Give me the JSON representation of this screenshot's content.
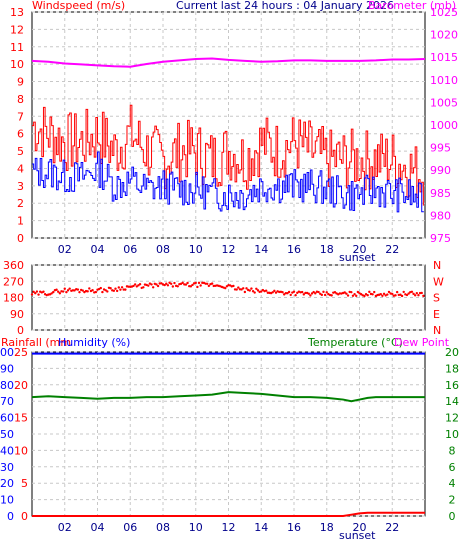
{
  "header": {
    "left_title": "Windspeed (m/s)",
    "center_title": "Current last 24 hours : 04 January 2026",
    "right_title": "Barometer (mb)"
  },
  "colors": {
    "wind_gust": "#ff0000",
    "wind_avg": "#0000ff",
    "barometer": "#ff00ff",
    "direction": "#ff0000",
    "rainfall": "#ff0000",
    "humidity": "#0000ff",
    "temperature": "#008000",
    "dewpoint": "#ff00ff",
    "grid": "#c8c8c8"
  },
  "x_axis": {
    "ticks": [
      "02",
      "04",
      "06",
      "08",
      "10",
      "12",
      "14",
      "16",
      "18",
      "20",
      "22"
    ],
    "tick_hours": [
      2,
      4,
      6,
      8,
      10,
      12,
      14,
      16,
      18,
      20,
      22
    ],
    "range_hours": [
      0,
      24
    ],
    "annotation": "sunset",
    "annotation_hour": 20
  },
  "chart_data": [
    {
      "type": "line",
      "title": "Windspeed (m/s) / Barometer (mb)",
      "xlabel": "",
      "ylabel": "Windspeed (m/s)",
      "ylim": [
        0,
        13
      ],
      "y_ticks": [
        0,
        1,
        2,
        3,
        4,
        5,
        6,
        7,
        8,
        9,
        10,
        11,
        12,
        13
      ],
      "y2label": "Barometer (mb)",
      "y2lim": [
        975,
        1025
      ],
      "y2_ticks": [
        975,
        980,
        985,
        990,
        995,
        1000,
        1005,
        1010,
        1015,
        1020,
        1025
      ],
      "x_hours": [
        0,
        1,
        2,
        3,
        4,
        5,
        6,
        7,
        8,
        9,
        10,
        11,
        12,
        13,
        14,
        15,
        16,
        17,
        18,
        19,
        20,
        21,
        22,
        23,
        24
      ],
      "series": [
        {
          "name": "Windspeed (m/s)",
          "axis": "right_none",
          "role": "gust",
          "values": [
            6.5,
            6.0,
            5.5,
            5.5,
            6.0,
            5.0,
            6.0,
            5.0,
            4.5,
            5.0,
            5.0,
            4.5,
            5.0,
            4.5,
            5.5,
            5.0,
            5.5,
            5.0,
            4.5,
            4.5,
            4.5,
            4.5,
            4.5,
            4.0,
            3.5
          ]
        },
        {
          "name": "Windspeed (m/s)",
          "role": "average",
          "values": [
            3.8,
            3.8,
            3.5,
            3.5,
            4.0,
            3.0,
            3.3,
            2.8,
            3.0,
            2.8,
            2.8,
            2.5,
            2.5,
            2.5,
            3.0,
            3.0,
            3.0,
            3.0,
            2.8,
            2.5,
            2.5,
            2.8,
            2.5,
            2.5,
            2.0
          ]
        },
        {
          "name": "Barometer (mb)",
          "axis": "right",
          "values": [
            1014.2,
            1014.0,
            1013.6,
            1013.4,
            1013.2,
            1013.0,
            1012.9,
            1013.5,
            1014.0,
            1014.3,
            1014.6,
            1014.7,
            1014.4,
            1014.2,
            1014.0,
            1014.1,
            1014.3,
            1014.3,
            1014.2,
            1014.2,
            1014.2,
            1014.3,
            1014.5,
            1014.5,
            1014.6
          ]
        }
      ]
    },
    {
      "type": "scatter",
      "title": "Wind direction",
      "ylim": [
        0,
        360
      ],
      "y_ticks": [
        0,
        90,
        180,
        270,
        360
      ],
      "compass_labels": [
        "N",
        "W",
        "S",
        "E",
        "N"
      ],
      "x_hours": [
        0,
        1,
        2,
        3,
        4,
        5,
        6,
        7,
        8,
        9,
        10,
        11,
        12,
        13,
        14,
        15,
        16,
        17,
        18,
        19,
        20,
        21,
        22,
        23,
        24
      ],
      "series": [
        {
          "name": "direction",
          "values": [
            200,
            205,
            220,
            220,
            220,
            225,
            240,
            245,
            250,
            250,
            250,
            250,
            240,
            220,
            215,
            210,
            205,
            200,
            200,
            200,
            200,
            200,
            200,
            200,
            200
          ]
        }
      ]
    },
    {
      "type": "line",
      "title": "Rainfall (mm) / Humidity (%) / Temperature (°C) / Dew Point",
      "legend": [
        "Rainfall (mm",
        "Humidity (%)",
        "Temperature (°C)",
        "Dew Point"
      ],
      "y_rain_ticks": [
        0,
        5,
        10,
        15,
        20,
        25
      ],
      "y_rain_lim": [
        0,
        25
      ],
      "y_hum_ticks": [
        0,
        10,
        20,
        30,
        40,
        50,
        60,
        70,
        80,
        90,
        100
      ],
      "y_hum_lim": [
        0,
        100
      ],
      "y_temp_ticks": [
        0,
        2,
        4,
        6,
        8,
        10,
        12,
        14,
        16,
        18,
        20
      ],
      "y_temp_lim": [
        0,
        20
      ],
      "x_hours": [
        0,
        1,
        2,
        3,
        4,
        5,
        6,
        7,
        8,
        9,
        10,
        11,
        12,
        13,
        14,
        15,
        16,
        17,
        18,
        19,
        19.5,
        20,
        20.5,
        21,
        22,
        23,
        24
      ],
      "series": [
        {
          "name": "Rainfall (mm",
          "axis": "rain",
          "values": [
            0,
            0,
            0,
            0,
            0,
            0,
            0,
            0,
            0,
            0,
            0,
            0,
            0,
            0,
            0,
            0,
            0,
            0,
            0,
            0,
            0.2,
            0.4,
            0.5,
            0.5,
            0.5,
            0.5,
            0.5
          ]
        },
        {
          "name": "Humidity (%)",
          "axis": "hum",
          "values": [
            99,
            99,
            99,
            99,
            99,
            99,
            99,
            99,
            99,
            99,
            99,
            99,
            99,
            99,
            99,
            99,
            99,
            99,
            99,
            99,
            99,
            99,
            99,
            99,
            99,
            99,
            99
          ]
        },
        {
          "name": "Temperature (°C)",
          "axis": "temp",
          "values": [
            14.5,
            14.6,
            14.5,
            14.4,
            14.3,
            14.4,
            14.4,
            14.5,
            14.5,
            14.6,
            14.7,
            14.8,
            15.1,
            15.0,
            14.9,
            14.7,
            14.5,
            14.5,
            14.4,
            14.2,
            14.0,
            14.2,
            14.4,
            14.5,
            14.5,
            14.5,
            14.5
          ]
        }
      ]
    }
  ]
}
